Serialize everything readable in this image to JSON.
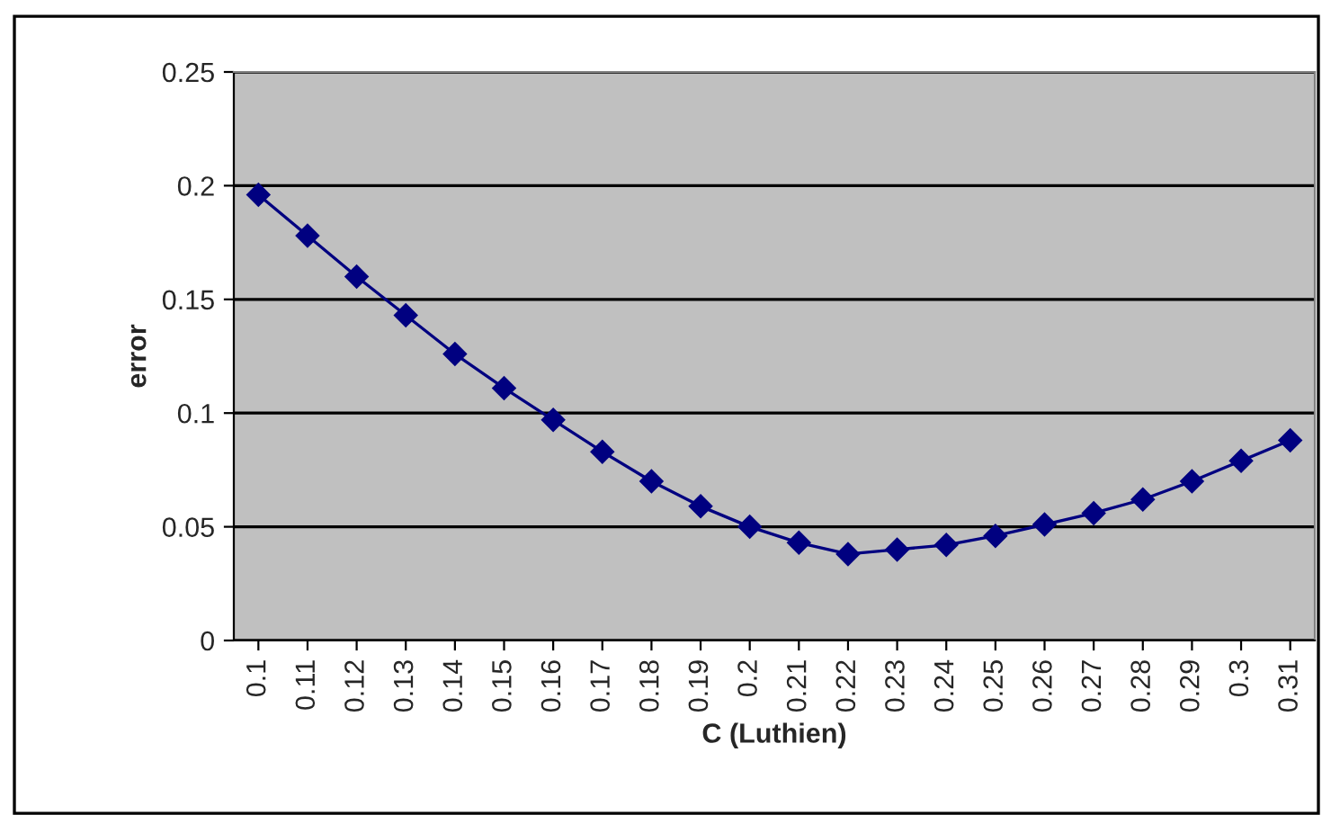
{
  "chart_data": {
    "type": "line",
    "xlabel": "C (Luthien)",
    "ylabel": "error",
    "categories": [
      "0.1",
      "0.11",
      "0.12",
      "0.13",
      "0.14",
      "0.15",
      "0.16",
      "0.17",
      "0.18",
      "0.19",
      "0.2",
      "0.21",
      "0.22",
      "0.23",
      "0.24",
      "0.25",
      "0.26",
      "0.27",
      "0.28",
      "0.29",
      "0.3",
      "0.31"
    ],
    "series": [
      {
        "color": "#000080",
        "values": [
          0.196,
          0.178,
          0.16,
          0.143,
          0.126,
          0.111,
          0.097,
          0.083,
          0.07,
          0.059,
          0.05,
          0.043,
          0.038,
          0.04,
          0.042,
          0.046,
          0.051,
          0.056,
          0.062,
          0.07,
          0.079,
          0.088
        ]
      }
    ],
    "ylim": [
      0,
      0.25
    ],
    "yticks": [
      0,
      0.05,
      0.1,
      0.15,
      0.2,
      0.25
    ],
    "grid": "y",
    "marker": "diamond",
    "line_style": "solid",
    "legend": false
  }
}
